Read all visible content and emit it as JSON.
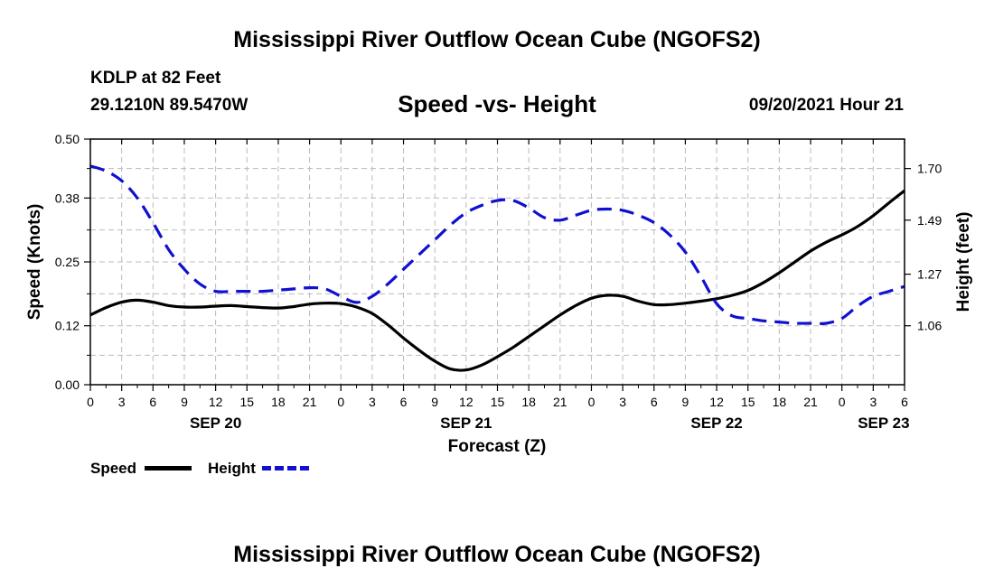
{
  "header": {
    "title": "Mississippi River Outflow Ocean Cube (NGOFS2)",
    "station": "KDLP at 82 Feet",
    "coords": "29.1210N  89.5470W",
    "subtitle": "Speed -vs- Height",
    "datetime": "09/20/2021 Hour 21",
    "footer_title": "Mississippi River Outflow Ocean Cube (NGOFS2)"
  },
  "legend": {
    "speed_label": "Speed",
    "height_label": "Height"
  },
  "colors": {
    "speed": "#000000",
    "height": "#1010d0",
    "grid": "#bbbbbb"
  },
  "chart_data": {
    "type": "line",
    "title": "Speed -vs- Height",
    "xlabel": "Forecast (Z)",
    "ylabel": "Speed (Knots)",
    "y2label": "Height (feet)",
    "xlim": [
      0,
      78
    ],
    "ylim": [
      0,
      0.5
    ],
    "y2lim": [
      0.82,
      1.82
    ],
    "x_tick_values": [
      0,
      3,
      6,
      9,
      12,
      15,
      18,
      21,
      24,
      27,
      30,
      33,
      36,
      39,
      42,
      45,
      48,
      51,
      54,
      57,
      60,
      63,
      66,
      69,
      72,
      75,
      78
    ],
    "x_tick_labels": [
      "0",
      "3",
      "6",
      "9",
      "12",
      "15",
      "18",
      "21",
      "0",
      "3",
      "6",
      "9",
      "12",
      "15",
      "18",
      "21",
      "0",
      "3",
      "6",
      "9",
      "12",
      "15",
      "18",
      "21",
      "0",
      "3",
      "6"
    ],
    "date_labels": [
      {
        "label": "SEP 20",
        "x": 12
      },
      {
        "label": "SEP 21",
        "x": 36
      },
      {
        "label": "SEP 22",
        "x": 60
      },
      {
        "label": "SEP 23",
        "x": 76
      }
    ],
    "y_ticks": [
      0.0,
      0.12,
      0.25,
      0.38,
      0.5
    ],
    "y_tick_labels": [
      "0.00",
      "0.12",
      "0.25",
      "0.38",
      "0.50"
    ],
    "y2_ticks": [
      1.06,
      1.27,
      1.49,
      1.7
    ],
    "y2_tick_labels": [
      "1.06",
      "1.27",
      "1.49",
      "1.70"
    ],
    "grid": true,
    "series": [
      {
        "name": "Speed",
        "axis": "left",
        "style": "solid",
        "x": [
          0,
          1.5,
          3,
          4.5,
          6,
          7.5,
          9,
          10.5,
          12,
          13.5,
          15,
          16.5,
          18,
          19.5,
          21,
          22.5,
          24,
          25.5,
          27,
          28.5,
          30,
          31.5,
          33,
          34.5,
          36,
          37.5,
          39,
          40.5,
          42,
          43.5,
          45,
          46.5,
          48,
          49.5,
          51,
          52.5,
          54,
          55.5,
          57,
          58.5,
          60,
          61.5,
          63,
          64.5,
          66,
          67.5,
          69,
          70.5,
          72,
          73.5,
          75,
          76.5,
          78
        ],
        "values": [
          0.142,
          0.157,
          0.168,
          0.172,
          0.168,
          0.161,
          0.158,
          0.158,
          0.16,
          0.161,
          0.159,
          0.157,
          0.156,
          0.159,
          0.164,
          0.166,
          0.165,
          0.158,
          0.145,
          0.122,
          0.095,
          0.07,
          0.048,
          0.032,
          0.03,
          0.04,
          0.057,
          0.076,
          0.098,
          0.12,
          0.142,
          0.161,
          0.176,
          0.182,
          0.18,
          0.17,
          0.163,
          0.163,
          0.166,
          0.17,
          0.175,
          0.182,
          0.192,
          0.208,
          0.228,
          0.25,
          0.272,
          0.29,
          0.305,
          0.322,
          0.344,
          0.37,
          0.395
        ]
      },
      {
        "name": "Height",
        "axis": "right",
        "style": "dashed",
        "x": [
          0,
          1.5,
          3,
          4.5,
          6,
          7.5,
          9,
          10.5,
          12,
          13.5,
          15,
          16.5,
          18,
          19.5,
          21,
          22.5,
          24,
          25.5,
          27,
          28.5,
          30,
          31.5,
          33,
          34.5,
          36,
          37.5,
          39,
          40.5,
          42,
          43.5,
          45,
          46.5,
          48,
          49.5,
          51,
          52.5,
          54,
          55.5,
          57,
          58.5,
          60,
          61.5,
          63,
          64.5,
          66,
          67.5,
          69,
          70.5,
          72,
          73.5,
          75,
          76.5,
          78
        ],
        "values": [
          1.71,
          1.69,
          1.65,
          1.58,
          1.48,
          1.37,
          1.29,
          1.23,
          1.2,
          1.2,
          1.2,
          1.2,
          1.205,
          1.21,
          1.215,
          1.21,
          1.18,
          1.155,
          1.18,
          1.23,
          1.29,
          1.35,
          1.41,
          1.47,
          1.52,
          1.55,
          1.57,
          1.57,
          1.54,
          1.5,
          1.49,
          1.51,
          1.53,
          1.535,
          1.53,
          1.51,
          1.48,
          1.43,
          1.36,
          1.26,
          1.15,
          1.1,
          1.09,
          1.08,
          1.075,
          1.07,
          1.07,
          1.07,
          1.09,
          1.14,
          1.18,
          1.2,
          1.22
        ]
      }
    ]
  }
}
